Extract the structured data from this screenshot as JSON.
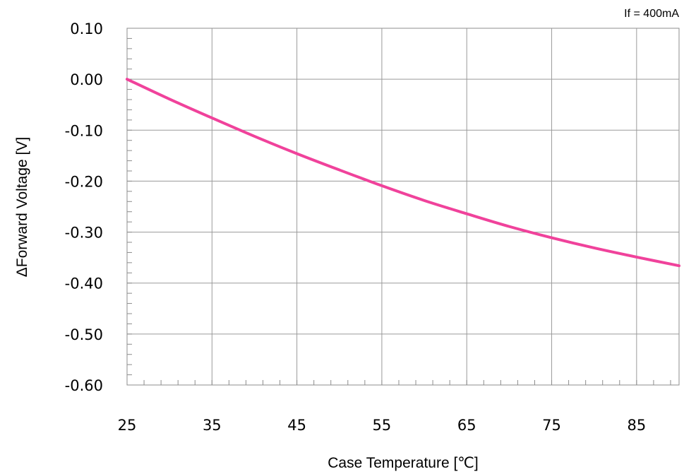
{
  "chart_data": {
    "type": "line",
    "annotation": "If = 400mA",
    "xlabel": "Case Temperature [℃]",
    "ylabel": "ΔForward Voltage [V]",
    "xlim": [
      25,
      90
    ],
    "ylim": [
      -0.6,
      0.1
    ],
    "x_ticks": [
      25,
      35,
      45,
      55,
      65,
      75,
      85
    ],
    "x_tick_labels": [
      "25",
      "35",
      "45",
      "55",
      "65",
      "75",
      "85"
    ],
    "y_ticks": [
      0.1,
      0.0,
      -0.1,
      -0.2,
      -0.3,
      -0.4,
      -0.5,
      -0.6
    ],
    "y_tick_labels": [
      "0.10",
      "0.00",
      "-0.10",
      "-0.20",
      "-0.30",
      "-0.40",
      "-0.50",
      "-0.60"
    ],
    "grid": true,
    "minor_ticks": true,
    "series": [
      {
        "color": "#f0429b",
        "x": [
          25,
          30,
          35,
          40,
          45,
          50,
          55,
          60,
          65,
          70,
          75,
          80,
          85,
          90
        ],
        "y": [
          0.0,
          -0.039,
          -0.076,
          -0.112,
          -0.146,
          -0.178,
          -0.209,
          -0.238,
          -0.264,
          -0.289,
          -0.311,
          -0.331,
          -0.349,
          -0.366
        ]
      }
    ]
  }
}
